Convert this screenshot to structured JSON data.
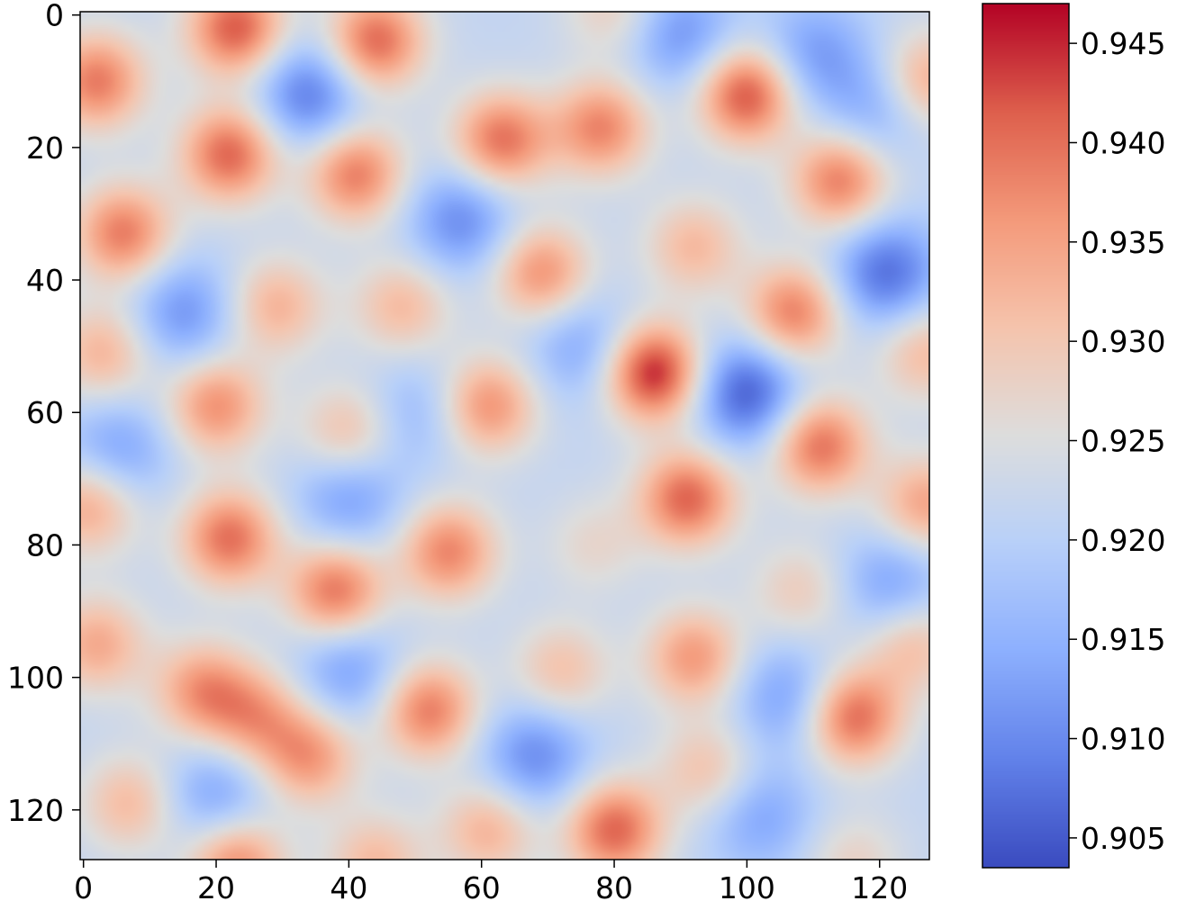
{
  "chart_data": {
    "type": "heatmap",
    "title": "",
    "xlabel": "",
    "ylabel": "",
    "grid_size": [
      128,
      128
    ],
    "x_range": [
      0,
      127
    ],
    "y_range": [
      0,
      127
    ],
    "y_inverted": true,
    "x_ticks": [
      {
        "value": 0,
        "label": "0"
      },
      {
        "value": 20,
        "label": "20"
      },
      {
        "value": 40,
        "label": "40"
      },
      {
        "value": 60,
        "label": "60"
      },
      {
        "value": 80,
        "label": "80"
      },
      {
        "value": 100,
        "label": "100"
      },
      {
        "value": 120,
        "label": "120"
      }
    ],
    "y_ticks": [
      {
        "value": 0,
        "label": "0"
      },
      {
        "value": 20,
        "label": "20"
      },
      {
        "value": 40,
        "label": "40"
      },
      {
        "value": 60,
        "label": "60"
      },
      {
        "value": 80,
        "label": "80"
      },
      {
        "value": 100,
        "label": "100"
      },
      {
        "value": 120,
        "label": "120"
      }
    ],
    "colormap": "coolwarm",
    "colorbar": {
      "range": [
        0.9035,
        0.947
      ],
      "ticks": [
        {
          "value": 0.905,
          "label": "0.905"
        },
        {
          "value": 0.91,
          "label": "0.910"
        },
        {
          "value": 0.915,
          "label": "0.915"
        },
        {
          "value": 0.92,
          "label": "0.920"
        },
        {
          "value": 0.925,
          "label": "0.925"
        },
        {
          "value": 0.93,
          "label": "0.930"
        },
        {
          "value": 0.935,
          "label": "0.935"
        },
        {
          "value": 0.94,
          "label": "0.940"
        },
        {
          "value": 0.945,
          "label": "0.945"
        }
      ]
    },
    "base_value": 0.9215,
    "peaks": [
      {
        "x": 23,
        "y": 2,
        "value": 0.942
      },
      {
        "x": 44,
        "y": 4,
        "value": 0.941
      },
      {
        "x": 80,
        "y": -1,
        "value": 0.929
      },
      {
        "x": 2,
        "y": 10,
        "value": 0.939
      },
      {
        "x": 100,
        "y": 12,
        "value": 0.943
      },
      {
        "x": 127,
        "y": 10,
        "value": 0.935
      },
      {
        "x": 22,
        "y": 21,
        "value": 0.941
      },
      {
        "x": 41,
        "y": 24,
        "value": 0.939
      },
      {
        "x": 63,
        "y": 19,
        "value": 0.94
      },
      {
        "x": 78,
        "y": 17,
        "value": 0.938
      },
      {
        "x": 114,
        "y": 25,
        "value": 0.939
      },
      {
        "x": 6,
        "y": 33,
        "value": 0.939
      },
      {
        "x": 92,
        "y": 35,
        "value": 0.932
      },
      {
        "x": 69,
        "y": 39,
        "value": 0.937
      },
      {
        "x": 29,
        "y": 44,
        "value": 0.933
      },
      {
        "x": 48,
        "y": 44,
        "value": 0.932
      },
      {
        "x": 107,
        "y": 45,
        "value": 0.939
      },
      {
        "x": 3,
        "y": 51,
        "value": 0.933
      },
      {
        "x": 86,
        "y": 54,
        "value": 0.946
      },
      {
        "x": 127,
        "y": 51,
        "value": 0.932
      },
      {
        "x": 20,
        "y": 59,
        "value": 0.937
      },
      {
        "x": 61,
        "y": 59,
        "value": 0.937
      },
      {
        "x": 40,
        "y": 63,
        "value": 0.932
      },
      {
        "x": 111,
        "y": 65,
        "value": 0.94
      },
      {
        "x": 91,
        "y": 73,
        "value": 0.941
      },
      {
        "x": 1,
        "y": 74,
        "value": 0.935
      },
      {
        "x": 127,
        "y": 74,
        "value": 0.935
      },
      {
        "x": 22,
        "y": 79,
        "value": 0.94
      },
      {
        "x": 55,
        "y": 81,
        "value": 0.938
      },
      {
        "x": 38,
        "y": 87,
        "value": 0.94
      },
      {
        "x": 77,
        "y": 80,
        "value": 0.927
      },
      {
        "x": 108,
        "y": 87,
        "value": 0.929
      },
      {
        "x": 2,
        "y": 95,
        "value": 0.934
      },
      {
        "x": 92,
        "y": 97,
        "value": 0.936
      },
      {
        "x": 72,
        "y": 99,
        "value": 0.931
      },
      {
        "x": 18,
        "y": 102,
        "value": 0.936
      },
      {
        "x": 26,
        "y": 106,
        "value": 0.934
      },
      {
        "x": 52,
        "y": 105,
        "value": 0.939
      },
      {
        "x": 116,
        "y": 106,
        "value": 0.941
      },
      {
        "x": 125,
        "y": 95,
        "value": 0.932
      },
      {
        "x": 34,
        "y": 112,
        "value": 0.936
      },
      {
        "x": 94,
        "y": 114,
        "value": 0.931
      },
      {
        "x": 7,
        "y": 119,
        "value": 0.932
      },
      {
        "x": 61,
        "y": 123,
        "value": 0.933
      },
      {
        "x": 80,
        "y": 123,
        "value": 0.941
      },
      {
        "x": 23,
        "y": 128,
        "value": 0.938
      },
      {
        "x": 44,
        "y": 128,
        "value": 0.932
      },
      {
        "x": 116,
        "y": 128,
        "value": 0.928
      }
    ],
    "valleys": [
      {
        "x": 34,
        "y": 12,
        "value": 0.908
      },
      {
        "x": 57,
        "y": 31,
        "value": 0.91
      },
      {
        "x": 121,
        "y": 39,
        "value": 0.907
      },
      {
        "x": 15,
        "y": 45,
        "value": 0.911
      },
      {
        "x": 100,
        "y": 57,
        "value": 0.905
      },
      {
        "x": 75,
        "y": 50,
        "value": 0.913
      },
      {
        "x": 5,
        "y": 66,
        "value": 0.912
      },
      {
        "x": 40,
        "y": 73,
        "value": 0.912
      },
      {
        "x": 122,
        "y": 86,
        "value": 0.912
      },
      {
        "x": 40,
        "y": 99,
        "value": 0.912
      },
      {
        "x": 68,
        "y": 112,
        "value": 0.91
      },
      {
        "x": 106,
        "y": 103,
        "value": 0.912
      },
      {
        "x": 110,
        "y": 6,
        "value": 0.912
      },
      {
        "x": 90,
        "y": 3,
        "value": 0.911
      },
      {
        "x": 120,
        "y": 14,
        "value": 0.913
      },
      {
        "x": 20,
        "y": 118,
        "value": 0.912
      },
      {
        "x": 102,
        "y": 121,
        "value": 0.913
      },
      {
        "x": 50,
        "y": 60,
        "value": 0.915
      }
    ]
  }
}
